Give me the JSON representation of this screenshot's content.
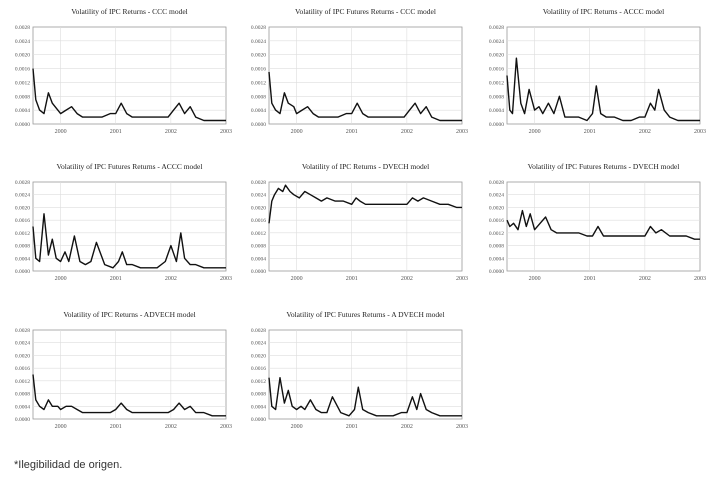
{
  "footnote": "*Ilegibilidad de origen.",
  "style": {
    "line_color": "#111111",
    "grid_color": "#dddddd",
    "tick_color": "#555555"
  },
  "chart_data": [
    {
      "type": "line",
      "title": "Volatility of IPC Returns - CCC model",
      "ylim": [
        0,
        0.0028
      ],
      "yticks": [
        "0.0028",
        "0.0024",
        "0.0020",
        "0.0016",
        "0.0012",
        "0.0008",
        "0.0004",
        "0.0000"
      ],
      "xlim": [
        1999.5,
        2003
      ],
      "xticks": [
        "2000",
        "2001",
        "2002",
        "2003"
      ],
      "grid": true,
      "x": [
        1999.5,
        1999.55,
        1999.62,
        1999.7,
        1999.78,
        1999.85,
        1999.95,
        2000.0,
        2000.1,
        2000.2,
        2000.3,
        2000.4,
        2000.5,
        2000.6,
        2000.75,
        2000.9,
        2001.0,
        2001.1,
        2001.2,
        2001.3,
        2001.4,
        2001.55,
        2001.7,
        2001.85,
        2001.95,
        2002.05,
        2002.15,
        2002.25,
        2002.35,
        2002.45,
        2002.6,
        2002.75,
        2002.9,
        2003.0
      ],
      "y": [
        0.0016,
        0.0007,
        0.0004,
        0.0003,
        0.0009,
        0.0006,
        0.0004,
        0.0003,
        0.0004,
        0.0005,
        0.0003,
        0.0002,
        0.0002,
        0.0002,
        0.0002,
        0.0003,
        0.0003,
        0.0006,
        0.0003,
        0.0002,
        0.0002,
        0.0002,
        0.0002,
        0.0002,
        0.0002,
        0.0004,
        0.0006,
        0.0003,
        0.0005,
        0.0002,
        0.0001,
        0.0001,
        0.0001,
        0.0001
      ]
    },
    {
      "type": "line",
      "title": "Volatility of IPC Futures Returns - CCC model",
      "ylim": [
        0,
        0.0028
      ],
      "yticks": [
        "0.0028",
        "0.0024",
        "0.0020",
        "0.0016",
        "0.0012",
        "0.0008",
        "0.0004",
        "0.0000"
      ],
      "xlim": [
        1999.5,
        2003
      ],
      "xticks": [
        "2000",
        "2001",
        "2002",
        "2003"
      ],
      "grid": true,
      "x": [
        1999.5,
        1999.55,
        1999.62,
        1999.7,
        1999.78,
        1999.85,
        1999.95,
        2000.0,
        2000.1,
        2000.2,
        2000.3,
        2000.4,
        2000.5,
        2000.6,
        2000.75,
        2000.9,
        2001.0,
        2001.1,
        2001.2,
        2001.3,
        2001.4,
        2001.55,
        2001.7,
        2001.85,
        2001.95,
        2002.05,
        2002.15,
        2002.25,
        2002.35,
        2002.45,
        2002.6,
        2002.75,
        2002.9,
        2003.0
      ],
      "y": [
        0.0015,
        0.0006,
        0.0004,
        0.0003,
        0.0009,
        0.0006,
        0.0005,
        0.0003,
        0.0004,
        0.0005,
        0.0003,
        0.0002,
        0.0002,
        0.0002,
        0.0002,
        0.0003,
        0.0003,
        0.0006,
        0.0003,
        0.0002,
        0.0002,
        0.0002,
        0.0002,
        0.0002,
        0.0002,
        0.0004,
        0.0006,
        0.0003,
        0.0005,
        0.0002,
        0.0001,
        0.0001,
        0.0001,
        0.0001
      ]
    },
    {
      "type": "line",
      "title": "Volatility of IPC Returns - ACCC model",
      "ylim": [
        0,
        0.0028
      ],
      "yticks": [
        "0.0028",
        "0.0024",
        "0.0020",
        "0.0016",
        "0.0012",
        "0.0008",
        "0.0004",
        "0.0000"
      ],
      "xlim": [
        1999.5,
        2003
      ],
      "xticks": [
        "2000",
        "2001",
        "2002",
        "2003"
      ],
      "grid": true,
      "x": [
        1999.5,
        1999.55,
        1999.6,
        1999.67,
        1999.75,
        1999.82,
        1999.9,
        2000.0,
        2000.08,
        2000.15,
        2000.25,
        2000.35,
        2000.45,
        2000.55,
        2000.65,
        2000.8,
        2000.95,
        2001.05,
        2001.12,
        2001.2,
        2001.3,
        2001.45,
        2001.6,
        2001.75,
        2001.9,
        2002.0,
        2002.1,
        2002.18,
        2002.25,
        2002.35,
        2002.45,
        2002.6,
        2002.75,
        2002.9,
        2003.0
      ],
      "y": [
        0.0014,
        0.0004,
        0.0003,
        0.0019,
        0.0006,
        0.0003,
        0.001,
        0.0004,
        0.0005,
        0.0003,
        0.0006,
        0.0003,
        0.0008,
        0.0002,
        0.0002,
        0.0002,
        0.0001,
        0.0003,
        0.0011,
        0.0003,
        0.0002,
        0.0002,
        0.0001,
        0.0001,
        0.0002,
        0.0002,
        0.0006,
        0.0004,
        0.001,
        0.0004,
        0.0002,
        0.0001,
        0.0001,
        0.0001,
        0.0001
      ]
    },
    {
      "type": "line",
      "title": "Volatility of IPC Futures Returns - ACCC model",
      "ylim": [
        0,
        0.0028
      ],
      "yticks": [
        "0.0028",
        "0.0024",
        "0.0020",
        "0.0016",
        "0.0012",
        "0.0008",
        "0.0004",
        "0.0000"
      ],
      "xlim": [
        1999.5,
        2003
      ],
      "xticks": [
        "2000",
        "2001",
        "2002",
        "2003"
      ],
      "grid": true,
      "x": [
        1999.5,
        1999.55,
        1999.62,
        1999.7,
        1999.78,
        1999.85,
        1999.92,
        2000.0,
        2000.08,
        2000.15,
        2000.25,
        2000.35,
        2000.45,
        2000.55,
        2000.65,
        2000.8,
        2000.95,
        2001.05,
        2001.12,
        2001.2,
        2001.3,
        2001.45,
        2001.6,
        2001.75,
        2001.9,
        2002.0,
        2002.1,
        2002.18,
        2002.25,
        2002.35,
        2002.45,
        2002.6,
        2002.75,
        2002.9,
        2003.0
      ],
      "y": [
        0.0014,
        0.0004,
        0.0003,
        0.0018,
        0.0005,
        0.001,
        0.0004,
        0.0003,
        0.0006,
        0.0003,
        0.0011,
        0.0003,
        0.0002,
        0.0003,
        0.0009,
        0.0002,
        0.0001,
        0.0003,
        0.0006,
        0.0002,
        0.0002,
        0.0001,
        0.0001,
        0.0001,
        0.0003,
        0.0008,
        0.0003,
        0.0012,
        0.0004,
        0.0002,
        0.0002,
        0.0001,
        0.0001,
        0.0001,
        0.0001
      ]
    },
    {
      "type": "line",
      "title": "Volatility of IPC Returns - DVECH model",
      "ylim": [
        0,
        0.0028
      ],
      "yticks": [
        "0.0028",
        "0.0024",
        "0.0020",
        "0.0016",
        "0.0012",
        "0.0008",
        "0.0004",
        "0.0000"
      ],
      "xlim": [
        1999.5,
        2003
      ],
      "xticks": [
        "2000",
        "2001",
        "2002",
        "2003"
      ],
      "grid": true,
      "x": [
        1999.5,
        1999.55,
        1999.6,
        1999.67,
        1999.75,
        1999.8,
        1999.88,
        1999.95,
        2000.05,
        2000.15,
        2000.25,
        2000.35,
        2000.45,
        2000.55,
        2000.7,
        2000.85,
        2001.0,
        2001.08,
        2001.15,
        2001.25,
        2001.4,
        2001.55,
        2001.7,
        2001.85,
        2002.0,
        2002.1,
        2002.2,
        2002.3,
        2002.45,
        2002.6,
        2002.75,
        2002.9,
        2003.0
      ],
      "y": [
        0.0015,
        0.0022,
        0.0024,
        0.0026,
        0.0025,
        0.0027,
        0.0025,
        0.0024,
        0.0023,
        0.0025,
        0.0024,
        0.0023,
        0.0022,
        0.0023,
        0.0022,
        0.0022,
        0.0021,
        0.0023,
        0.0022,
        0.0021,
        0.0021,
        0.0021,
        0.0021,
        0.0021,
        0.0021,
        0.0023,
        0.0022,
        0.0023,
        0.0022,
        0.0021,
        0.0021,
        0.002,
        0.002
      ]
    },
    {
      "type": "line",
      "title": "Volatility of IPC Futures Returns - DVECH model",
      "ylim": [
        0,
        0.0028
      ],
      "yticks": [
        "0.0028",
        "0.0024",
        "0.0020",
        "0.0016",
        "0.0012",
        "0.0008",
        "0.0004",
        "0.0000"
      ],
      "xlim": [
        1999.5,
        2003
      ],
      "xticks": [
        "2000",
        "2001",
        "2002",
        "2003"
      ],
      "grid": true,
      "x": [
        1999.5,
        1999.55,
        1999.62,
        1999.7,
        1999.78,
        1999.85,
        1999.92,
        2000.0,
        2000.1,
        2000.2,
        2000.3,
        2000.4,
        2000.5,
        2000.65,
        2000.8,
        2000.95,
        2001.05,
        2001.15,
        2001.25,
        2001.4,
        2001.55,
        2001.7,
        2001.85,
        2002.0,
        2002.1,
        2002.2,
        2002.3,
        2002.45,
        2002.6,
        2002.75,
        2002.9,
        2003.0
      ],
      "y": [
        0.0016,
        0.0014,
        0.0015,
        0.0013,
        0.0019,
        0.0014,
        0.0018,
        0.0013,
        0.0015,
        0.0017,
        0.0013,
        0.0012,
        0.0012,
        0.0012,
        0.0012,
        0.0011,
        0.0011,
        0.0014,
        0.0011,
        0.0011,
        0.0011,
        0.0011,
        0.0011,
        0.0011,
        0.0014,
        0.0012,
        0.0013,
        0.0011,
        0.0011,
        0.0011,
        0.001,
        0.001
      ]
    },
    {
      "type": "line",
      "title": "Volatility of IPC Returns - ADVECH model",
      "ylim": [
        0,
        0.0028
      ],
      "yticks": [
        "0.0028",
        "0.0024",
        "0.0020",
        "0.0016",
        "0.0012",
        "0.0008",
        "0.0004",
        "0.0000"
      ],
      "xlim": [
        1999.5,
        2003
      ],
      "xticks": [
        "2000",
        "2001",
        "2002",
        "2003"
      ],
      "grid": true,
      "x": [
        1999.5,
        1999.55,
        1999.62,
        1999.7,
        1999.78,
        1999.85,
        1999.95,
        2000.0,
        2000.1,
        2000.2,
        2000.3,
        2000.4,
        2000.5,
        2000.6,
        2000.75,
        2000.9,
        2001.0,
        2001.1,
        2001.2,
        2001.3,
        2001.4,
        2001.55,
        2001.7,
        2001.85,
        2001.95,
        2002.05,
        2002.15,
        2002.25,
        2002.35,
        2002.45,
        2002.6,
        2002.75,
        2002.9,
        2003.0
      ],
      "y": [
        0.0014,
        0.0006,
        0.0004,
        0.0003,
        0.0006,
        0.0004,
        0.0004,
        0.0003,
        0.0004,
        0.0004,
        0.0003,
        0.0002,
        0.0002,
        0.0002,
        0.0002,
        0.0002,
        0.0003,
        0.0005,
        0.0003,
        0.0002,
        0.0002,
        0.0002,
        0.0002,
        0.0002,
        0.0002,
        0.0003,
        0.0005,
        0.0003,
        0.0004,
        0.0002,
        0.0002,
        0.0001,
        0.0001,
        0.0001
      ]
    },
    {
      "type": "line",
      "title": "Volatility of IPC Futures Returns - A DVECH model",
      "ylim": [
        0,
        0.0028
      ],
      "yticks": [
        "0.0028",
        "0.0024",
        "0.0020",
        "0.0016",
        "0.0012",
        "0.0008",
        "0.0004",
        "0.0000"
      ],
      "xlim": [
        1999.5,
        2003
      ],
      "xticks": [
        "2000",
        "2001",
        "2002",
        "2003"
      ],
      "grid": true,
      "x": [
        1999.5,
        1999.55,
        1999.62,
        1999.7,
        1999.78,
        1999.85,
        1999.92,
        2000.0,
        2000.08,
        2000.15,
        2000.25,
        2000.35,
        2000.45,
        2000.55,
        2000.65,
        2000.8,
        2000.95,
        2001.05,
        2001.12,
        2001.2,
        2001.3,
        2001.45,
        2001.6,
        2001.75,
        2001.9,
        2002.0,
        2002.1,
        2002.18,
        2002.25,
        2002.35,
        2002.45,
        2002.6,
        2002.75,
        2002.9,
        2003.0
      ],
      "y": [
        0.0013,
        0.0004,
        0.0003,
        0.0013,
        0.0005,
        0.0009,
        0.0004,
        0.0003,
        0.0004,
        0.0003,
        0.0006,
        0.0003,
        0.0002,
        0.0002,
        0.0007,
        0.0002,
        0.0001,
        0.0003,
        0.001,
        0.0003,
        0.0002,
        0.0001,
        0.0001,
        0.0001,
        0.0002,
        0.0002,
        0.0007,
        0.0003,
        0.0008,
        0.0003,
        0.0002,
        0.0001,
        0.0001,
        0.0001,
        0.0001
      ]
    }
  ]
}
